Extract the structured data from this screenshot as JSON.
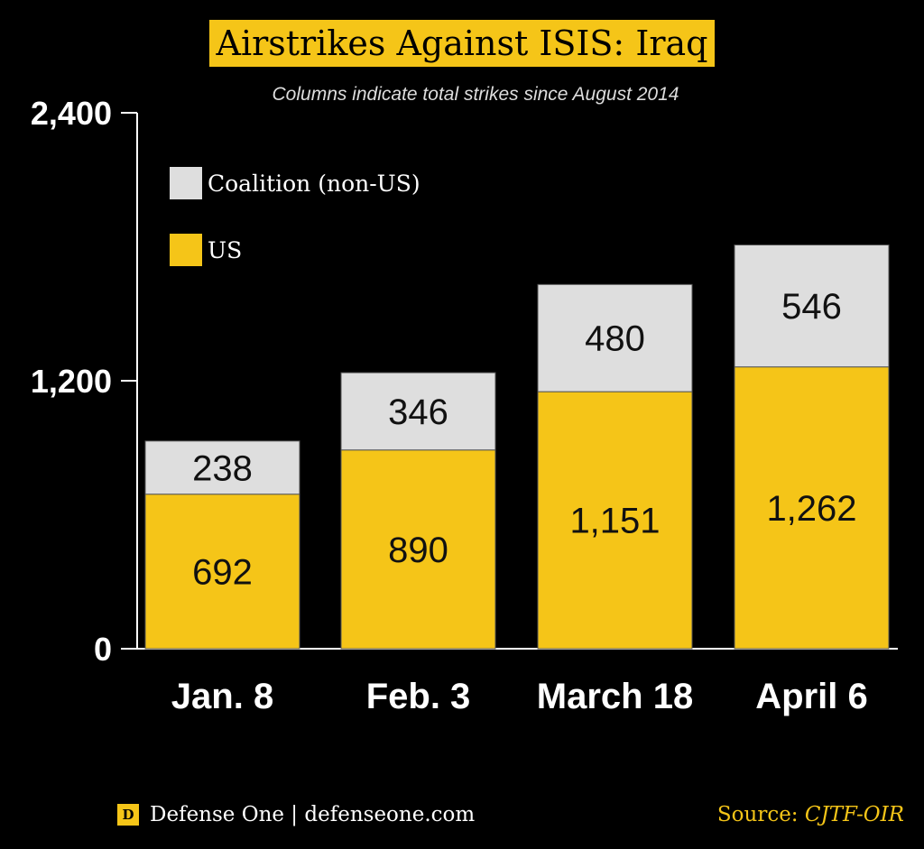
{
  "chart_data": {
    "type": "bar",
    "stacked": true,
    "title": "Airstrikes Against ISIS: Iraq",
    "subtitle": "Columns indicate total strikes since August 2014",
    "categories": [
      "Jan. 8",
      "Feb. 3",
      "March 18",
      "April 6"
    ],
    "series": [
      {
        "name": "US",
        "values": [
          692,
          890,
          1151,
          1262
        ],
        "color": "#f5c518"
      },
      {
        "name": "Coalition (non-US)",
        "values": [
          238,
          346,
          480,
          546
        ],
        "color": "#dedede"
      }
    ],
    "value_labels": {
      "US": [
        "692",
        "890",
        "1,151",
        "1,262"
      ],
      "Coalition (non-US)": [
        "238",
        "346",
        "480",
        "546"
      ]
    },
    "ylim": [
      0,
      2400
    ],
    "yticks": [
      0,
      1200,
      2400
    ],
    "ytick_labels": [
      "0",
      "1,200",
      "2,400"
    ],
    "legend_position": "top-left",
    "grid": false
  },
  "legend": [
    {
      "label": "Coalition (non-US)",
      "color": "#dedede"
    },
    {
      "label": "US",
      "color": "#f5c518"
    }
  ],
  "footer": {
    "logo_letter": "D",
    "brand": "Defense One | defenseone.com",
    "source_label": "Source:",
    "source_value": "CJTF-OIR"
  }
}
